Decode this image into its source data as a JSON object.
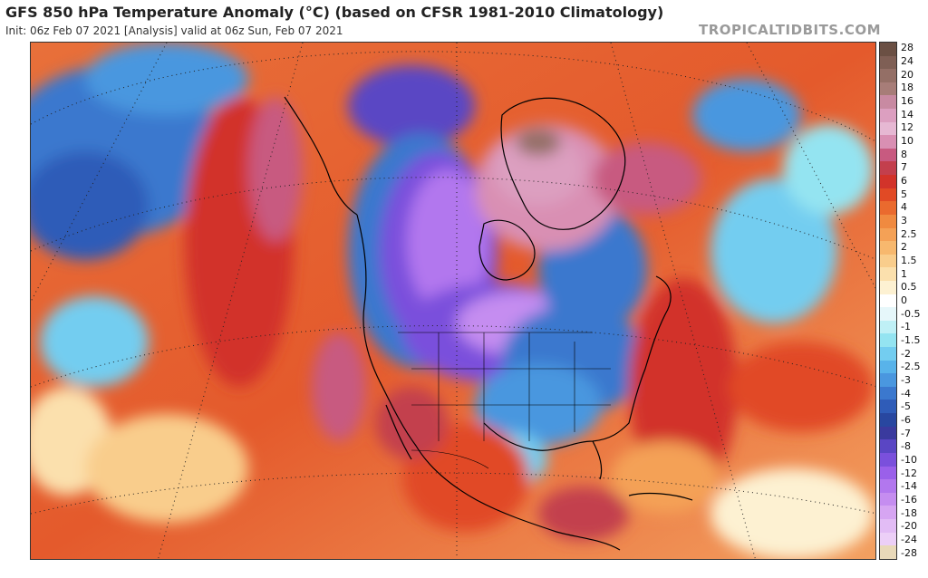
{
  "header": {
    "title": "GFS 850 hPa Temperature Anomaly (°C) (based on CFSR 1981-2010 Climatology)",
    "subtitle": "Init: 06z Feb 07 2021   [Analysis]   valid at 06z Sun, Feb 07 2021",
    "brand": "TROPICALTIDBITS.COM"
  },
  "colorbar": {
    "labels": [
      "28",
      "24",
      "20",
      "18",
      "16",
      "14",
      "12",
      "10",
      "8",
      "7",
      "6",
      "5",
      "4",
      "3",
      "2.5",
      "2",
      "1.5",
      "1",
      "0.5",
      "0",
      "-0.5",
      "-1",
      "-1.5",
      "-2",
      "-2.5",
      "-3",
      "-4",
      "-5",
      "-6",
      "-7",
      "-8",
      "-10",
      "-12",
      "-14",
      "-16",
      "-18",
      "-20",
      "-24",
      "-28"
    ],
    "colors": [
      "#6b5044",
      "#7f5f55",
      "#946f66",
      "#a77d78",
      "#c88aa2",
      "#dc9fc0",
      "#e6b8d3",
      "#d98fb3",
      "#c85a80",
      "#c33f4d",
      "#d2332a",
      "#e14a25",
      "#ea6a2e",
      "#f08a40",
      "#f4a156",
      "#f7b86e",
      "#f9cd8c",
      "#fbe0ad",
      "#fdf1d2",
      "#ffffff",
      "#e6f7fa",
      "#bff0f6",
      "#94e4f1",
      "#73cdf0",
      "#58b3ea",
      "#4a97df",
      "#3b78ce",
      "#2f5cb8",
      "#2847a0",
      "#3a3a9e",
      "#5a46c4",
      "#7a50dc",
      "#9a60ea",
      "#b277ee",
      "#c58df0",
      "#d6a5f2",
      "#e2bcf5",
      "#eccff7",
      "#e9d9b9"
    ]
  }
}
